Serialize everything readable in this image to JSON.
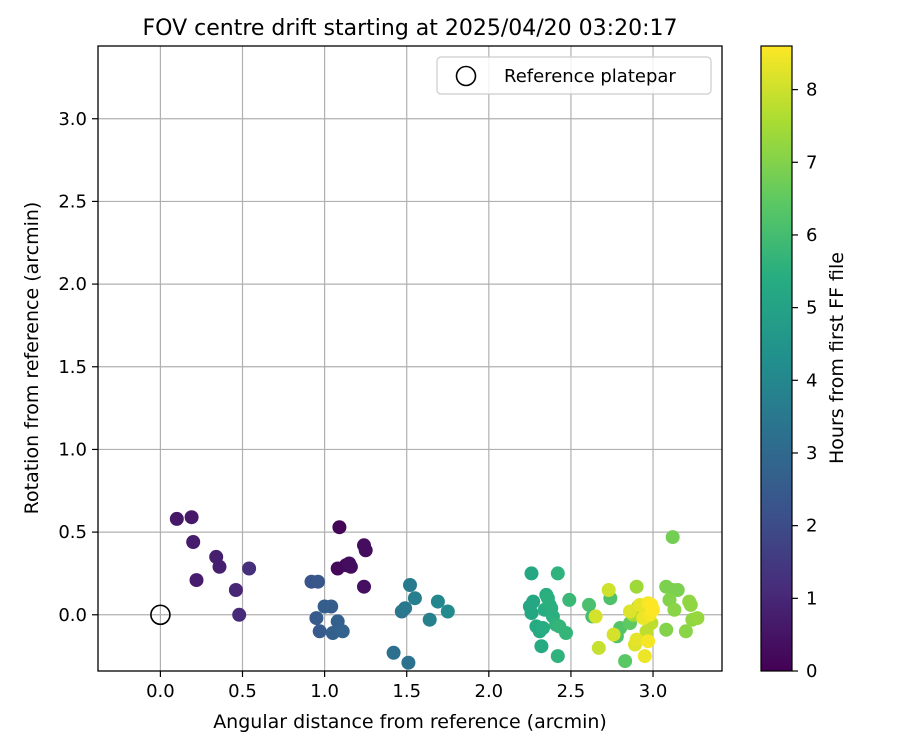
{
  "chart_data": {
    "type": "scatter",
    "title": "FOV centre drift starting at 2025/04/20 03:20:17",
    "xlabel": "Angular distance from reference (arcmin)",
    "ylabel": "Rotation from reference (arcmin)",
    "xlim": [
      -0.38,
      3.42
    ],
    "ylim": [
      -0.34,
      3.44
    ],
    "x_ticks": [
      0.0,
      0.5,
      1.0,
      1.5,
      2.0,
      2.5,
      3.0
    ],
    "x_tick_labels": [
      "0.0",
      "0.5",
      "1.0",
      "1.5",
      "2.0",
      "2.5",
      "3.0"
    ],
    "y_ticks": [
      0.0,
      0.5,
      1.0,
      1.5,
      2.0,
      2.5,
      3.0
    ],
    "y_tick_labels": [
      "0.0",
      "0.5",
      "1.0",
      "1.5",
      "2.0",
      "2.5",
      "3.0"
    ],
    "grid": true,
    "legend": {
      "position": "upper-right",
      "label": "Reference platepar"
    },
    "reference_point": {
      "x": 0.0,
      "y": 0.0
    },
    "colorbar": {
      "label": "Hours from first FF file",
      "colormap": "viridis",
      "range": [
        0,
        8.6
      ],
      "ticks": [
        0,
        1,
        2,
        3,
        4,
        5,
        6,
        7,
        8
      ],
      "tick_labels": [
        "0",
        "1",
        "2",
        "3",
        "4",
        "5",
        "6",
        "7",
        "8"
      ]
    },
    "points": [
      {
        "x": 0.1,
        "y": 0.58,
        "c": 0.6
      },
      {
        "x": 0.19,
        "y": 0.59,
        "c": 0.6
      },
      {
        "x": 0.2,
        "y": 0.44,
        "c": 0.7
      },
      {
        "x": 0.22,
        "y": 0.21,
        "c": 0.7
      },
      {
        "x": 0.34,
        "y": 0.35,
        "c": 0.8
      },
      {
        "x": 0.36,
        "y": 0.29,
        "c": 0.8
      },
      {
        "x": 0.46,
        "y": 0.15,
        "c": 1.0
      },
      {
        "x": 0.48,
        "y": 0.0,
        "c": 1.1
      },
      {
        "x": 0.54,
        "y": 0.28,
        "c": 1.2
      },
      {
        "x": 1.09,
        "y": 0.53,
        "c": 0.1
      },
      {
        "x": 1.08,
        "y": 0.28,
        "c": 0.2
      },
      {
        "x": 1.13,
        "y": 0.3,
        "c": 0.2
      },
      {
        "x": 1.15,
        "y": 0.31,
        "c": 0.3
      },
      {
        "x": 1.16,
        "y": 0.29,
        "c": 0.3
      },
      {
        "x": 1.24,
        "y": 0.42,
        "c": 0.3
      },
      {
        "x": 1.25,
        "y": 0.39,
        "c": 0.3
      },
      {
        "x": 1.24,
        "y": 0.17,
        "c": 0.4
      },
      {
        "x": 0.92,
        "y": 0.2,
        "c": 2.3
      },
      {
        "x": 0.96,
        "y": 0.2,
        "c": 2.4
      },
      {
        "x": 0.95,
        "y": -0.02,
        "c": 2.5
      },
      {
        "x": 0.97,
        "y": -0.1,
        "c": 2.5
      },
      {
        "x": 1.0,
        "y": 0.05,
        "c": 2.6
      },
      {
        "x": 1.04,
        "y": 0.05,
        "c": 2.6
      },
      {
        "x": 1.05,
        "y": -0.11,
        "c": 2.7
      },
      {
        "x": 1.08,
        "y": -0.04,
        "c": 2.7
      },
      {
        "x": 1.11,
        "y": -0.1,
        "c": 2.8
      },
      {
        "x": 1.42,
        "y": -0.23,
        "c": 3.2
      },
      {
        "x": 1.51,
        "y": -0.29,
        "c": 3.3
      },
      {
        "x": 1.47,
        "y": 0.02,
        "c": 3.4
      },
      {
        "x": 1.49,
        "y": 0.04,
        "c": 3.5
      },
      {
        "x": 1.52,
        "y": 0.18,
        "c": 3.6
      },
      {
        "x": 1.55,
        "y": 0.1,
        "c": 3.7
      },
      {
        "x": 1.64,
        "y": -0.03,
        "c": 3.8
      },
      {
        "x": 1.69,
        "y": 0.08,
        "c": 4.0
      },
      {
        "x": 1.75,
        "y": 0.02,
        "c": 4.1
      },
      {
        "x": 2.26,
        "y": 0.25,
        "c": 5.2
      },
      {
        "x": 2.25,
        "y": 0.05,
        "c": 5.1
      },
      {
        "x": 2.26,
        "y": 0.01,
        "c": 5.2
      },
      {
        "x": 2.27,
        "y": 0.08,
        "c": 5.2
      },
      {
        "x": 2.29,
        "y": -0.07,
        "c": 5.3
      },
      {
        "x": 2.31,
        "y": -0.1,
        "c": 5.3
      },
      {
        "x": 2.32,
        "y": -0.19,
        "c": 5.3
      },
      {
        "x": 2.33,
        "y": -0.08,
        "c": 5.4
      },
      {
        "x": 2.34,
        "y": 0.03,
        "c": 5.4
      },
      {
        "x": 2.35,
        "y": 0.12,
        "c": 5.4
      },
      {
        "x": 2.36,
        "y": 0.1,
        "c": 5.5
      },
      {
        "x": 2.37,
        "y": 0.06,
        "c": 5.5
      },
      {
        "x": 2.38,
        "y": 0.04,
        "c": 5.5
      },
      {
        "x": 2.39,
        "y": -0.01,
        "c": 5.5
      },
      {
        "x": 2.41,
        "y": -0.06,
        "c": 5.6
      },
      {
        "x": 2.42,
        "y": -0.25,
        "c": 5.6
      },
      {
        "x": 2.42,
        "y": 0.25,
        "c": 5.6
      },
      {
        "x": 2.43,
        "y": -0.07,
        "c": 5.7
      },
      {
        "x": 2.47,
        "y": -0.11,
        "c": 5.7
      },
      {
        "x": 2.49,
        "y": 0.09,
        "c": 5.8
      },
      {
        "x": 2.61,
        "y": 0.06,
        "c": 6.1
      },
      {
        "x": 2.63,
        "y": -0.01,
        "c": 6.0
      },
      {
        "x": 2.74,
        "y": 0.1,
        "c": 6.2
      },
      {
        "x": 2.78,
        "y": -0.13,
        "c": 6.2
      },
      {
        "x": 2.8,
        "y": -0.08,
        "c": 6.3
      },
      {
        "x": 2.83,
        "y": -0.28,
        "c": 6.4
      },
      {
        "x": 2.86,
        "y": -0.05,
        "c": 6.5
      },
      {
        "x": 3.12,
        "y": 0.47,
        "c": 6.8
      },
      {
        "x": 3.08,
        "y": 0.17,
        "c": 6.9
      },
      {
        "x": 3.12,
        "y": 0.15,
        "c": 6.9
      },
      {
        "x": 3.15,
        "y": 0.15,
        "c": 6.9
      },
      {
        "x": 3.1,
        "y": 0.09,
        "c": 7.0
      },
      {
        "x": 3.08,
        "y": -0.09,
        "c": 7.0
      },
      {
        "x": 3.13,
        "y": 0.03,
        "c": 7.1
      },
      {
        "x": 3.2,
        "y": -0.1,
        "c": 7.1
      },
      {
        "x": 3.22,
        "y": 0.08,
        "c": 7.2
      },
      {
        "x": 3.23,
        "y": 0.06,
        "c": 7.2
      },
      {
        "x": 3.24,
        "y": -0.03,
        "c": 7.2
      },
      {
        "x": 3.27,
        "y": -0.02,
        "c": 7.3
      },
      {
        "x": 2.9,
        "y": 0.17,
        "c": 7.4
      },
      {
        "x": 2.88,
        "y": 0.0,
        "c": 7.5
      },
      {
        "x": 2.91,
        "y": 0.05,
        "c": 7.6
      },
      {
        "x": 2.94,
        "y": 0.03,
        "c": 7.7
      },
      {
        "x": 2.96,
        "y": -0.1,
        "c": 7.8
      },
      {
        "x": 2.99,
        "y": -0.05,
        "c": 7.8
      },
      {
        "x": 2.67,
        "y": -0.2,
        "c": 7.9
      },
      {
        "x": 2.73,
        "y": 0.15,
        "c": 8.0
      },
      {
        "x": 2.76,
        "y": -0.12,
        "c": 8.1
      },
      {
        "x": 2.65,
        "y": -0.01,
        "c": 8.1
      },
      {
        "x": 2.86,
        "y": 0.02,
        "c": 8.2
      },
      {
        "x": 2.89,
        "y": -0.18,
        "c": 8.2
      },
      {
        "x": 2.9,
        "y": -0.15,
        "c": 8.3
      },
      {
        "x": 2.92,
        "y": 0.06,
        "c": 8.3
      },
      {
        "x": 2.94,
        "y": -0.02,
        "c": 8.4
      },
      {
        "x": 2.95,
        "y": -0.25,
        "c": 8.4
      },
      {
        "x": 2.97,
        "y": 0.07,
        "c": 8.5
      },
      {
        "x": 2.98,
        "y": 0.0,
        "c": 8.5
      },
      {
        "x": 2.97,
        "y": -0.16,
        "c": 8.5
      },
      {
        "x": 2.99,
        "y": 0.06,
        "c": 8.6
      },
      {
        "x": 3.0,
        "y": 0.03,
        "c": 8.6
      }
    ]
  }
}
